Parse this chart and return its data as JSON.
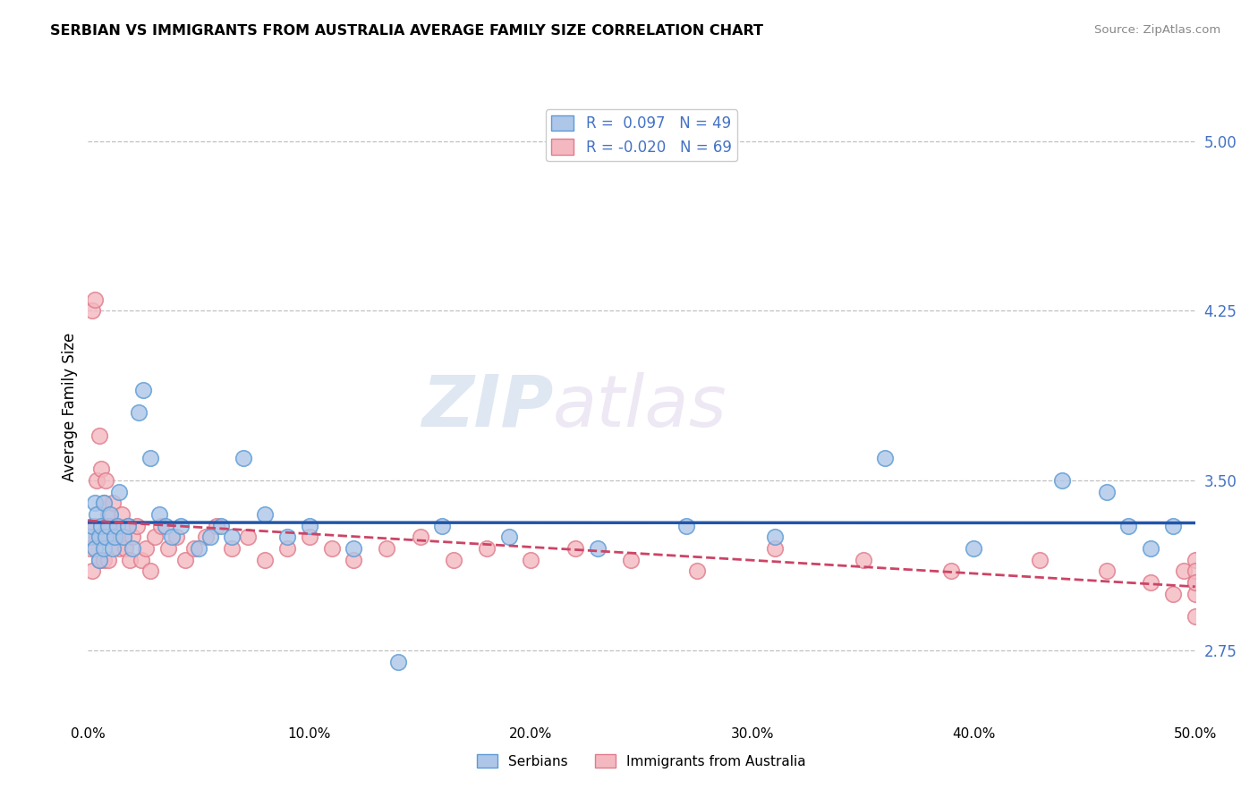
{
  "title": "SERBIAN VS IMMIGRANTS FROM AUSTRALIA AVERAGE FAMILY SIZE CORRELATION CHART",
  "source_text": "Source: ZipAtlas.com",
  "ylabel": "Average Family Size",
  "xlim": [
    0.0,
    0.5
  ],
  "ylim": [
    2.45,
    5.2
  ],
  "yticks": [
    2.75,
    3.5,
    4.25,
    5.0
  ],
  "xticks": [
    0.0,
    0.1,
    0.2,
    0.3,
    0.4,
    0.5
  ],
  "xticklabels": [
    "0.0%",
    "10.0%",
    "20.0%",
    "30.0%",
    "40.0%",
    "50.0%"
  ],
  "watermark_zip": "ZIP",
  "watermark_atlas": "atlas",
  "serbians_face": "#aec6e8",
  "serbians_edge": "#5b9bd5",
  "australia_face": "#f4b8c1",
  "australia_edge": "#e07b8a",
  "trend_serbian_color": "#2255aa",
  "trend_australia_color": "#cc4466",
  "serbian_x": [
    0.001,
    0.002,
    0.003,
    0.003,
    0.004,
    0.005,
    0.005,
    0.006,
    0.007,
    0.007,
    0.008,
    0.009,
    0.01,
    0.011,
    0.012,
    0.013,
    0.014,
    0.016,
    0.018,
    0.02,
    0.023,
    0.025,
    0.028,
    0.032,
    0.035,
    0.038,
    0.042,
    0.05,
    0.055,
    0.06,
    0.065,
    0.07,
    0.08,
    0.09,
    0.1,
    0.12,
    0.14,
    0.16,
    0.19,
    0.23,
    0.27,
    0.31,
    0.36,
    0.4,
    0.44,
    0.46,
    0.47,
    0.48,
    0.49
  ],
  "serbian_y": [
    3.25,
    3.3,
    3.2,
    3.4,
    3.35,
    3.25,
    3.15,
    3.3,
    3.2,
    3.4,
    3.25,
    3.3,
    3.35,
    3.2,
    3.25,
    3.3,
    3.45,
    3.25,
    3.3,
    3.2,
    3.8,
    3.9,
    3.6,
    3.35,
    3.3,
    3.25,
    3.3,
    3.2,
    3.25,
    3.3,
    3.25,
    3.6,
    3.35,
    3.25,
    3.3,
    3.2,
    2.7,
    3.3,
    3.25,
    3.2,
    3.3,
    3.25,
    3.6,
    3.2,
    3.5,
    3.45,
    3.3,
    3.2,
    3.3
  ],
  "australia_x": [
    0.001,
    0.002,
    0.002,
    0.003,
    0.003,
    0.004,
    0.004,
    0.005,
    0.005,
    0.006,
    0.006,
    0.007,
    0.007,
    0.008,
    0.008,
    0.009,
    0.009,
    0.01,
    0.011,
    0.012,
    0.013,
    0.014,
    0.015,
    0.016,
    0.017,
    0.018,
    0.019,
    0.02,
    0.022,
    0.024,
    0.026,
    0.028,
    0.03,
    0.033,
    0.036,
    0.04,
    0.044,
    0.048,
    0.053,
    0.058,
    0.065,
    0.072,
    0.08,
    0.09,
    0.1,
    0.11,
    0.12,
    0.135,
    0.15,
    0.165,
    0.18,
    0.2,
    0.22,
    0.245,
    0.275,
    0.31,
    0.35,
    0.39,
    0.43,
    0.46,
    0.48,
    0.49,
    0.495,
    0.5,
    0.5,
    0.5,
    0.5,
    0.5,
    0.5
  ],
  "australia_y": [
    3.2,
    4.25,
    3.1,
    4.3,
    3.3,
    3.5,
    3.25,
    3.7,
    3.15,
    3.55,
    3.25,
    3.4,
    3.15,
    3.5,
    3.25,
    3.35,
    3.15,
    3.3,
    3.4,
    3.25,
    3.3,
    3.2,
    3.35,
    3.25,
    3.2,
    3.3,
    3.15,
    3.25,
    3.3,
    3.15,
    3.2,
    3.1,
    3.25,
    3.3,
    3.2,
    3.25,
    3.15,
    3.2,
    3.25,
    3.3,
    3.2,
    3.25,
    3.15,
    3.2,
    3.25,
    3.2,
    3.15,
    3.2,
    3.25,
    3.15,
    3.2,
    3.15,
    3.2,
    3.15,
    3.1,
    3.2,
    3.15,
    3.1,
    3.15,
    3.1,
    3.05,
    3.0,
    3.1,
    2.9,
    3.05,
    3.15,
    3.1,
    3.0,
    3.05
  ]
}
